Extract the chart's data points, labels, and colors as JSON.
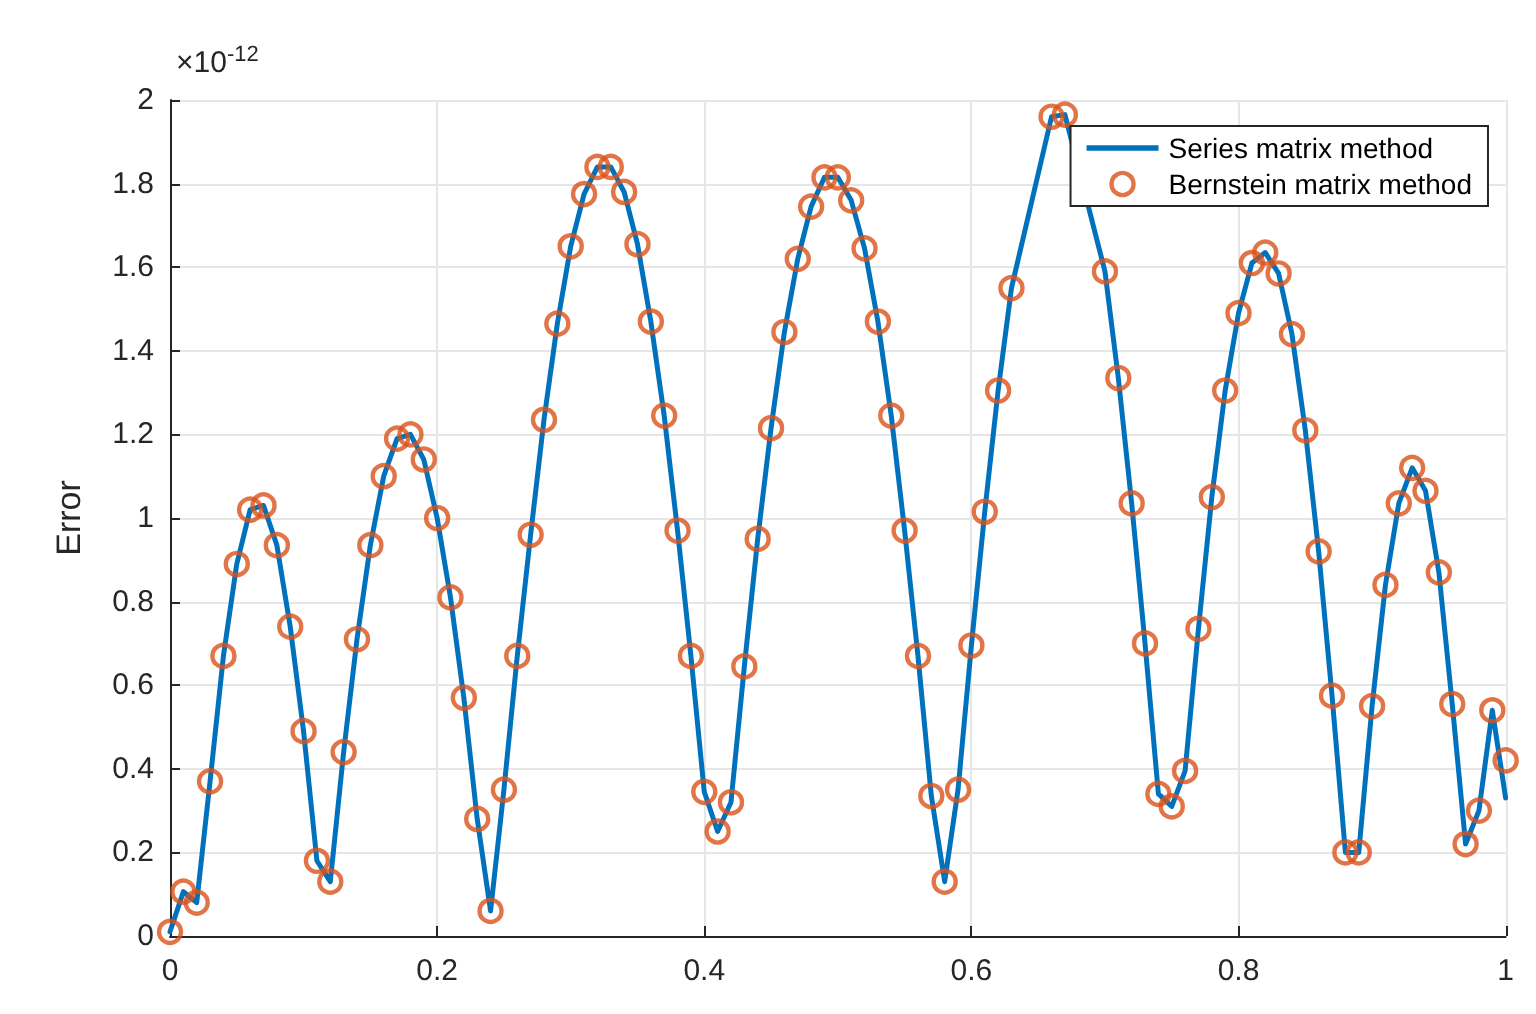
{
  "chart_data": {
    "type": "line",
    "ylabel": "Error",
    "annotations": [
      "×10$^{-12}$"
    ],
    "xlim": [
      0,
      1
    ],
    "xticks": [
      0,
      0.2,
      0.4,
      0.6,
      0.8,
      1
    ],
    "ylim": [
      0,
      2
    ],
    "yticks": [
      0,
      0.2,
      0.4,
      0.6,
      0.8,
      1,
      1.2,
      1.4,
      1.6,
      1.8,
      2
    ],
    "grid": true,
    "legend": "top right",
    "x": [
      0,
      0.01,
      0.02,
      0.03,
      0.04,
      0.05,
      0.06,
      0.07,
      0.08,
      0.09,
      0.1,
      0.11,
      0.12,
      0.13,
      0.14,
      0.15,
      0.16,
      0.17,
      0.18,
      0.19,
      0.2,
      0.21,
      0.22,
      0.23,
      0.24,
      0.25,
      0.26,
      0.27,
      0.28,
      0.29,
      0.3,
      0.31,
      0.32,
      0.33,
      0.34,
      0.35,
      0.36,
      0.37,
      0.38,
      0.39,
      0.4,
      0.41,
      0.42,
      0.43,
      0.44,
      0.45,
      0.46,
      0.47,
      0.48,
      0.49,
      0.5,
      0.51,
      0.52,
      0.53,
      0.54,
      0.55,
      0.56,
      0.57,
      0.58,
      0.59,
      0.6,
      0.61,
      0.62,
      0.63,
      0.64,
      0.65,
      0.66,
      0.67,
      0.68,
      0.69,
      0.7,
      0.71,
      0.72,
      0.73,
      0.74,
      0.75,
      0.76,
      0.77,
      0.78,
      0.79,
      0.8,
      0.81,
      0.82,
      0.83,
      0.84,
      0.85,
      0.86,
      0.87,
      0.88,
      0.89,
      0.9,
      0.91,
      0.92,
      0.93,
      0.94,
      0.95,
      0.96,
      0.97,
      0.98,
      0.99,
      1
    ],
    "series": [
      {
        "name": "Series matrix method",
        "marker": "none",
        "line_style": "solid",
        "color": "#0072bd",
        "values": [
          0.01,
          0.106,
          0.08,
          0.37,
          0.67,
          0.89,
          1.02,
          1.03,
          0.935,
          0.74,
          0.49,
          0.18,
          0.13,
          0.44,
          0.71,
          0.935,
          1.1,
          1.19,
          1.2,
          1.14,
          1,
          0.81,
          0.57,
          0.28,
          0.06,
          0.35,
          0.67,
          0.96,
          1.235,
          1.465,
          1.65,
          1.775,
          1.84,
          1.84,
          1.78,
          1.655,
          1.47,
          1.245,
          0.97,
          0.67,
          0.345,
          0.25,
          0.32,
          0.645,
          0.95,
          1.215,
          1.445,
          1.62,
          1.745,
          1.815,
          1.815,
          1.76,
          1.645,
          1.47,
          1.245,
          0.97,
          0.67,
          0.335,
          0.13,
          0.35,
          0.695,
          1.015,
          1.305,
          1.55,
          null,
          null,
          1.96,
          1.965,
          null,
          null,
          1.59,
          1.335,
          1.035,
          0.7,
          0.34,
          0.31,
          0.395,
          0.735,
          1.05,
          1.305,
          1.49,
          1.61,
          1.635,
          1.585,
          1.44,
          1.21,
          0.92,
          0.575,
          0.2,
          0.2,
          0.55,
          0.84,
          1.035,
          1.12,
          1.065,
          0.87,
          0.555,
          0.22,
          0.3,
          0.54,
          0.33
        ]
      },
      {
        "name": "Bernstein matrix method",
        "type": "scatter",
        "marker": "circle",
        "color": "#d95319",
        "values": [
          0.01,
          0.106,
          0.08,
          0.37,
          0.67,
          0.89,
          1.02,
          1.03,
          0.935,
          0.74,
          0.49,
          0.18,
          0.13,
          0.44,
          0.71,
          0.935,
          1.1,
          1.19,
          1.2,
          1.14,
          1,
          0.81,
          0.57,
          0.28,
          0.06,
          0.35,
          0.67,
          0.96,
          1.235,
          1.465,
          1.65,
          1.775,
          1.84,
          1.84,
          1.78,
          1.655,
          1.47,
          1.245,
          0.97,
          0.67,
          0.345,
          0.25,
          0.32,
          0.645,
          0.95,
          1.215,
          1.445,
          1.62,
          1.745,
          1.815,
          1.815,
          1.76,
          1.645,
          1.47,
          1.245,
          0.97,
          0.67,
          0.335,
          0.13,
          0.35,
          0.695,
          1.015,
          1.305,
          1.55,
          null,
          null,
          1.96,
          1.965,
          null,
          null,
          1.59,
          1.335,
          1.035,
          0.7,
          0.34,
          0.31,
          0.395,
          0.735,
          1.05,
          1.305,
          1.49,
          1.61,
          1.635,
          1.585,
          1.44,
          1.21,
          0.92,
          0.575,
          0.2,
          0.2,
          0.55,
          0.84,
          1.035,
          1.12,
          1.065,
          0.87,
          0.555,
          0.22,
          0.3,
          0.54,
          0.42
        ]
      }
    ]
  }
}
